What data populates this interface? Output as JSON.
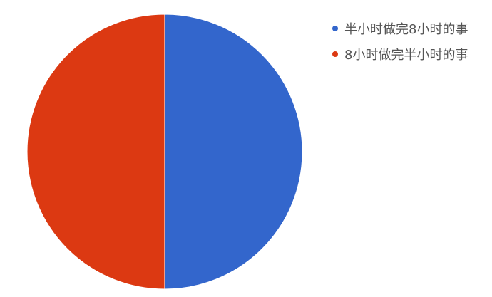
{
  "chart_data": {
    "type": "pie",
    "title": "",
    "legend_position": "top-right",
    "slices": [
      {
        "label": "半小时做完8小时的事",
        "value": 50,
        "color": "#3366cc"
      },
      {
        "label": "8小时做完半小时的事",
        "value": 50,
        "color": "#dc3912"
      }
    ]
  }
}
